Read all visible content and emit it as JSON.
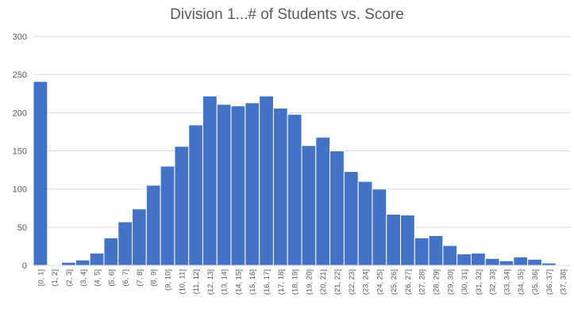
{
  "chart_data": {
    "type": "bar",
    "title": "Division 1...# of Students vs. Score",
    "xlabel": "",
    "ylabel": "",
    "ylim": [
      0,
      300
    ],
    "yticks": [
      0,
      50,
      100,
      150,
      200,
      250,
      300
    ],
    "grid": true,
    "legend": "none",
    "bar_color": "#4472C4",
    "categories": [
      "[0, 1]",
      "(1, 2]",
      "(2, 3]",
      "(3, 4]",
      "(4, 5]",
      "(5, 6]",
      "(6, 7]",
      "(7, 8]",
      "(8, 9]",
      "(9, 10]",
      "(10, 11]",
      "(11, 12]",
      "(12, 13]",
      "(13, 14]",
      "(14, 15]",
      "(15, 16]",
      "(16, 17]",
      "(17, 18]",
      "(18, 19]",
      "(19, 20]",
      "(20, 21]",
      "(21, 22]",
      "(22, 23]",
      "(23, 24]",
      "(24, 25]",
      "(25, 26]",
      "(26, 27]",
      "(27, 28]",
      "(28, 29]",
      "(29, 30]",
      "(30, 31]",
      "(31, 32]",
      "(32, 33]",
      "(33, 34]",
      "(34, 35]",
      "(35, 36]",
      "(36, 37]",
      "(37, 38]"
    ],
    "values": [
      241,
      0,
      4,
      7,
      16,
      36,
      57,
      74,
      105,
      130,
      156,
      184,
      222,
      211,
      209,
      213,
      222,
      206,
      198,
      157,
      168,
      150,
      123,
      110,
      100,
      67,
      66,
      36,
      39,
      26,
      15,
      16,
      9,
      6,
      11,
      8,
      3,
      0
    ]
  }
}
